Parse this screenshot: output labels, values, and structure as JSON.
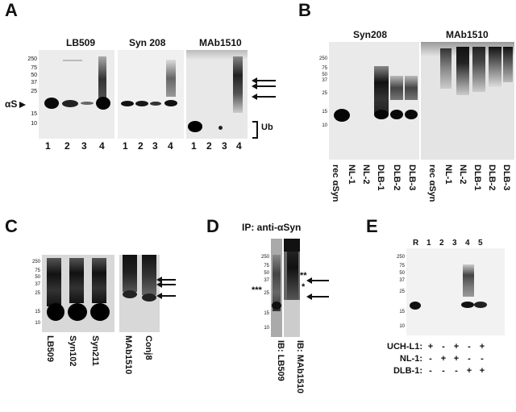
{
  "panel_letters": {
    "a": "A",
    "b": "B",
    "c": "C",
    "d": "D",
    "e": "E"
  },
  "A": {
    "blot_titles": [
      "LB509",
      "Syn 208",
      "MAb1510"
    ],
    "mw_markers": [
      "250",
      "75",
      "50",
      "37",
      "25",
      "15",
      "10"
    ],
    "lane_numbers": [
      "1",
      "2",
      "3",
      "4"
    ],
    "as_label": "αS",
    "ub_label": "Ub"
  },
  "B": {
    "blot_titles": [
      "Syn208",
      "MAb1510"
    ],
    "mw_markers": [
      "250",
      "75",
      "50",
      "37",
      "25",
      "15",
      "10"
    ],
    "lanes": [
      "rec αSyn",
      "NL-1",
      "NL-2",
      "DLB-1",
      "DLB-2",
      "DLB-3"
    ]
  },
  "C": {
    "mw_markers": [
      "250",
      "75",
      "50",
      "37",
      "25",
      "15",
      "10"
    ],
    "lanes": [
      "LB509",
      "Syn102",
      "Syn211",
      "MAb1510",
      "Conj8"
    ]
  },
  "D": {
    "title": "IP: anti-αSyn",
    "mw_markers": [
      "250",
      "75",
      "50",
      "37",
      "25",
      "15",
      "10"
    ],
    "lanes": [
      "IB: LB509",
      "IB: MAb1510"
    ],
    "stars_left": "***",
    "stars_right_top": "**",
    "stars_right_mid": "*"
  },
  "E": {
    "mw_markers": [
      "250",
      "75",
      "50",
      "37",
      "25",
      "15",
      "10"
    ],
    "lane_labels": [
      "R",
      "1",
      "2",
      "3",
      "4",
      "5"
    ],
    "rows": [
      {
        "label": "UCH-L1:",
        "signs": [
          "+",
          "-",
          "+",
          "-",
          "+"
        ]
      },
      {
        "label": "NL-1:",
        "signs": [
          "-",
          "+",
          "+",
          "-",
          "-"
        ]
      },
      {
        "label": "DLB-1:",
        "signs": [
          "-",
          "-",
          "-",
          "+",
          "+"
        ]
      }
    ]
  }
}
